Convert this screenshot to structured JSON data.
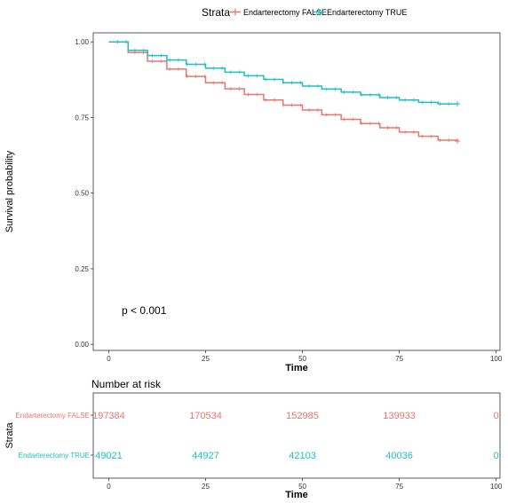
{
  "legend": {
    "title": "Strata",
    "items": [
      {
        "label": "Endarterectomy FALSE",
        "color": "#E8766D"
      },
      {
        "label": "Endarterectomy TRUE",
        "color": "#1FBFC3"
      }
    ]
  },
  "chart_data": [
    {
      "type": "line",
      "subtype": "kaplan-meier survival curve",
      "xlabel": "Time",
      "ylabel": "Survival probability",
      "xlim": [
        -4,
        101
      ],
      "ylim": [
        -0.02,
        1.03
      ],
      "xticks": [
        0,
        25,
        50,
        75,
        100
      ],
      "yticks": [
        0.0,
        0.25,
        0.5,
        0.75,
        1.0
      ],
      "xtick_labels": [
        "0",
        "25",
        "50",
        "75",
        "100"
      ],
      "ytick_labels": [
        "0.00",
        "0.25",
        "0.50",
        "0.75",
        "1.00"
      ],
      "grid": false,
      "legend_position": "top",
      "annotation": "p < 0.001",
      "series": [
        {
          "name": "Endarterectomy FALSE",
          "color": "#E8766D",
          "x": [
            0,
            5,
            10,
            15,
            20,
            25,
            30,
            35,
            40,
            45,
            50,
            55,
            60,
            65,
            70,
            75,
            80,
            85,
            90
          ],
          "y": [
            1.0,
            0.965,
            0.936,
            0.91,
            0.886,
            0.865,
            0.845,
            0.826,
            0.808,
            0.791,
            0.775,
            0.759,
            0.744,
            0.73,
            0.716,
            0.702,
            0.688,
            0.675,
            0.672
          ]
        },
        {
          "name": "Endarterectomy TRUE",
          "color": "#1FBFC3",
          "x": [
            0,
            5,
            10,
            15,
            20,
            25,
            30,
            35,
            40,
            45,
            50,
            55,
            60,
            65,
            70,
            75,
            80,
            85,
            90
          ],
          "y": [
            1.0,
            0.972,
            0.955,
            0.94,
            0.926,
            0.913,
            0.9,
            0.888,
            0.876,
            0.865,
            0.854,
            0.844,
            0.834,
            0.825,
            0.816,
            0.808,
            0.8,
            0.795,
            0.795
          ]
        }
      ]
    },
    {
      "type": "table",
      "title": "Number at risk",
      "xlabel": "Time",
      "ylabel": "Strata",
      "xlim": [
        -4,
        101
      ],
      "xticks": [
        0,
        25,
        50,
        75,
        100
      ],
      "xtick_labels": [
        "0",
        "25",
        "50",
        "75",
        "100"
      ],
      "rows": [
        {
          "name": "Endarterectomy FALSE",
          "color": "#E8766D",
          "values": [
            "197384",
            "170534",
            "152985",
            "139933",
            "0"
          ]
        },
        {
          "name": "Endarterectomy TRUE",
          "color": "#1FBFC3",
          "values": [
            "49021",
            "44927",
            "42103",
            "40036",
            "0"
          ]
        }
      ]
    }
  ]
}
